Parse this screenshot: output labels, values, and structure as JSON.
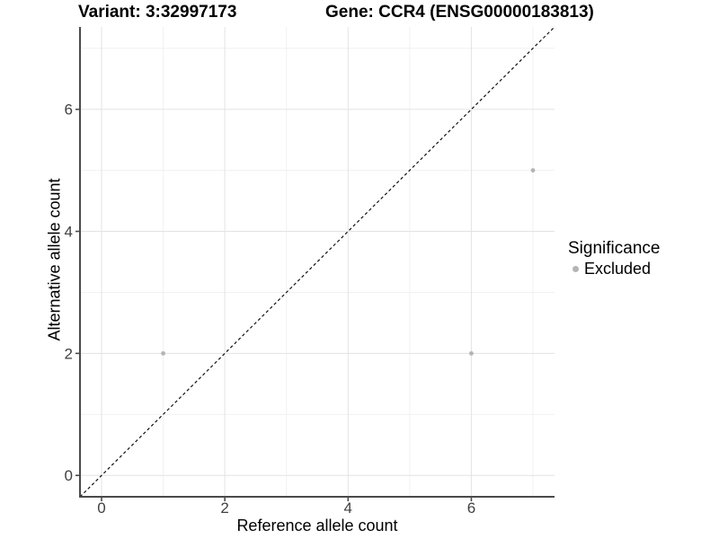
{
  "chart_data": {
    "type": "scatter",
    "titles": {
      "left": "Variant: 3:32997173",
      "right": "Gene: CCR4 (ENSG00000183813)"
    },
    "xlabel": "Reference allele count",
    "ylabel": "Alternative allele count",
    "xlim": [
      -0.35,
      7.35
    ],
    "ylim": [
      -0.35,
      7.35
    ],
    "x_ticks": {
      "values": [
        0,
        2,
        4,
        6
      ],
      "labels": [
        "0",
        "2",
        "4",
        "6"
      ]
    },
    "y_ticks": {
      "values": [
        0,
        2,
        4,
        6
      ],
      "labels": [
        "0",
        "2",
        "4",
        "6"
      ]
    },
    "x_minor_gridlines": [
      1,
      3,
      5,
      7
    ],
    "y_minor_gridlines": [
      1,
      3,
      5,
      7
    ],
    "grid": {
      "major": true,
      "minor": true
    },
    "identity_line": {
      "equation": "y = x",
      "style": "dashed"
    },
    "series": [
      {
        "name": "Excluded",
        "color": "#b5b5b5",
        "points": [
          [
            1,
            2
          ],
          [
            6,
            2
          ],
          [
            7,
            5
          ]
        ]
      }
    ],
    "legend": {
      "title": "Significance",
      "position": "right",
      "items": [
        {
          "label": "Excluded",
          "color": "#b5b5b5"
        }
      ]
    }
  },
  "colors": {
    "background": "#ffffff",
    "grid_major": "#e3e3e3",
    "grid_minor": "#f1f1f1",
    "axis_line": "#4a4a4a",
    "tick_text": "#404040",
    "title_text": "#000000",
    "point": "#b5b5b5",
    "identity_line": "#111111"
  }
}
